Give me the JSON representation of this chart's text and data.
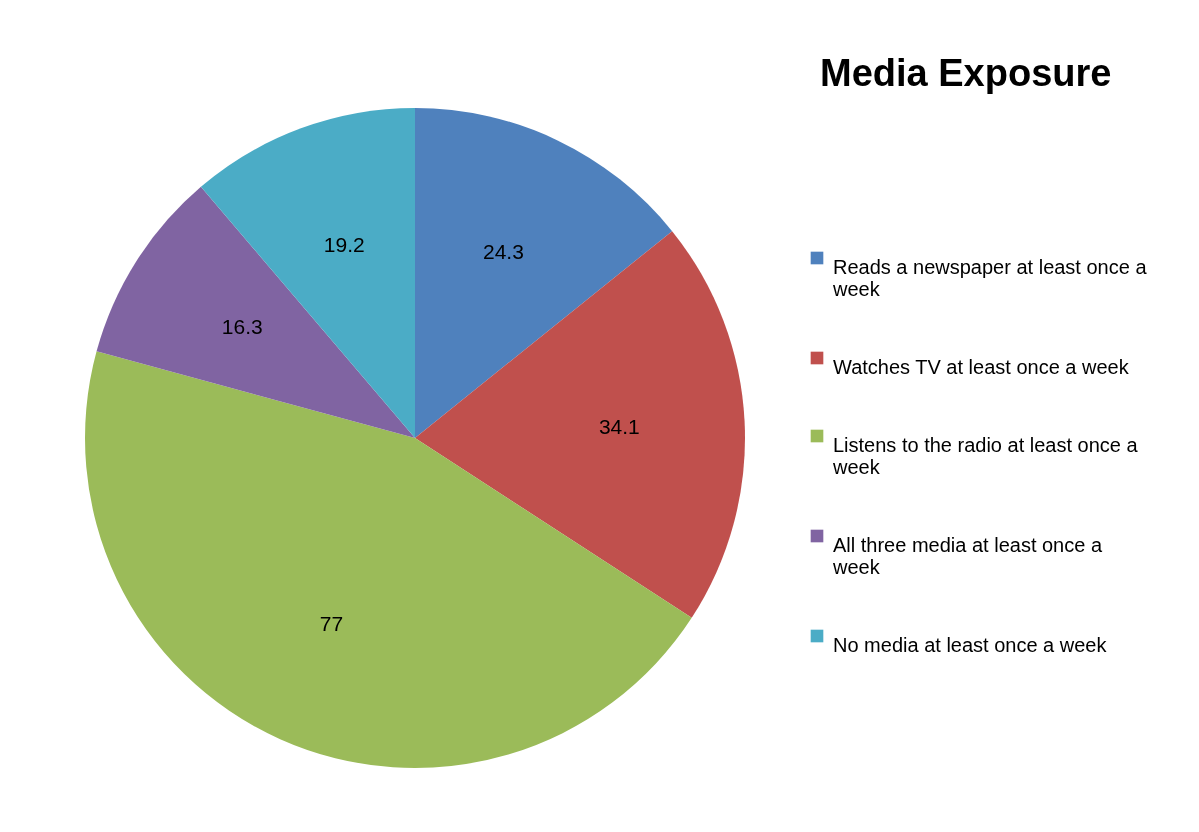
{
  "chart_data": {
    "type": "pie",
    "title": "Media Exposure",
    "categories": [
      "Reads a newspaper at least once a week",
      "Watches TV at least once a week",
      "Listens to the radio at least once a week",
      "All three media at least once a week",
      "No media  at least once a week"
    ],
    "values": [
      24.3,
      34.1,
      77,
      16.3,
      19.2
    ],
    "colors": [
      "#4f81bd",
      "#c0504d",
      "#9bbb59",
      "#8064a2",
      "#4bacc6"
    ],
    "data_labels": true,
    "legend": "right"
  }
}
